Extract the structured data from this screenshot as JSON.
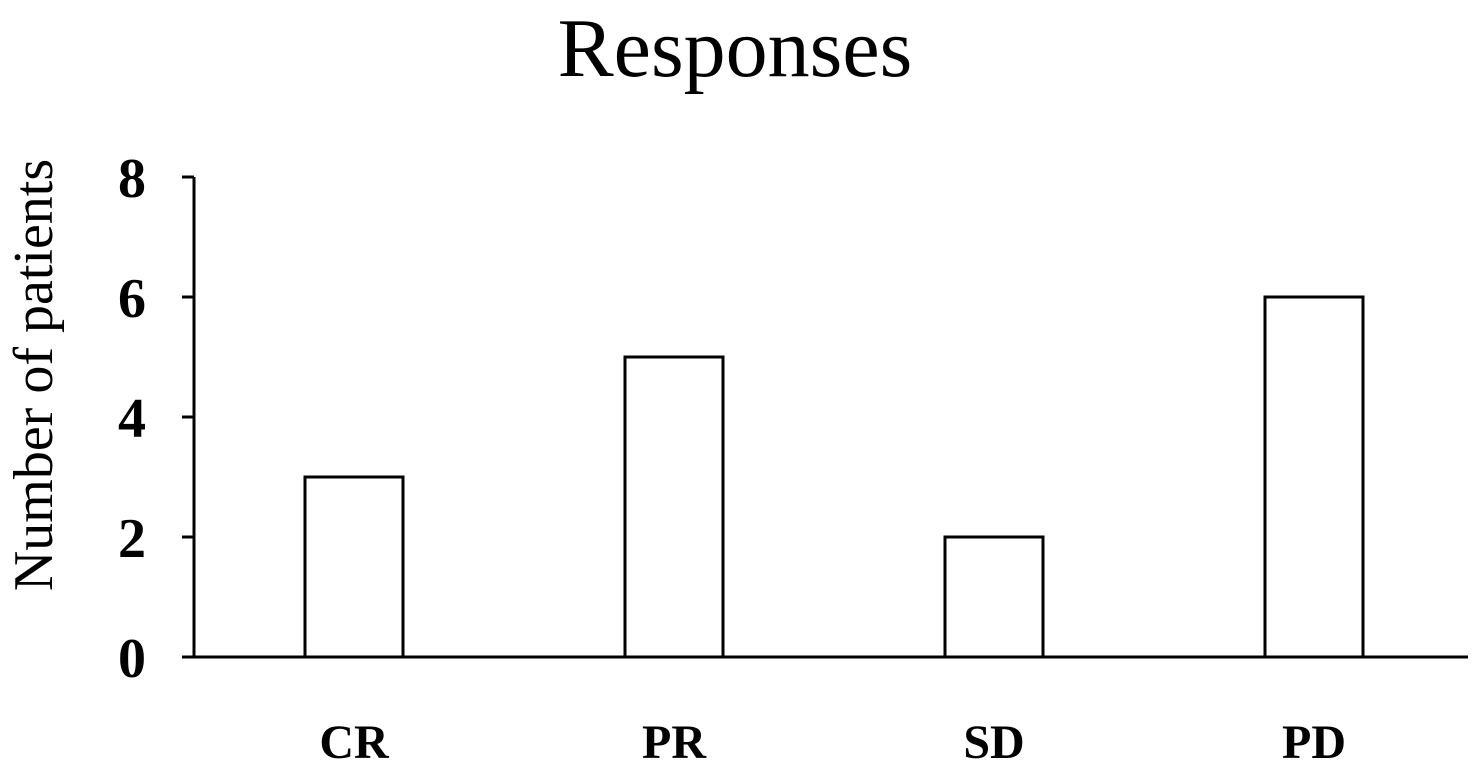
{
  "chart_data": {
    "type": "bar",
    "title": "Responses",
    "xlabel": "",
    "ylabel": "Number of patients",
    "categories": [
      "CR",
      "PR",
      "SD",
      "PD"
    ],
    "values": [
      3,
      5,
      2,
      6
    ],
    "ylim": [
      0,
      8
    ],
    "yticks": [
      0,
      2,
      4,
      6,
      8
    ],
    "grid": false,
    "legend": "none",
    "bar_fill": "#ffffff",
    "bar_stroke": "#000000"
  }
}
